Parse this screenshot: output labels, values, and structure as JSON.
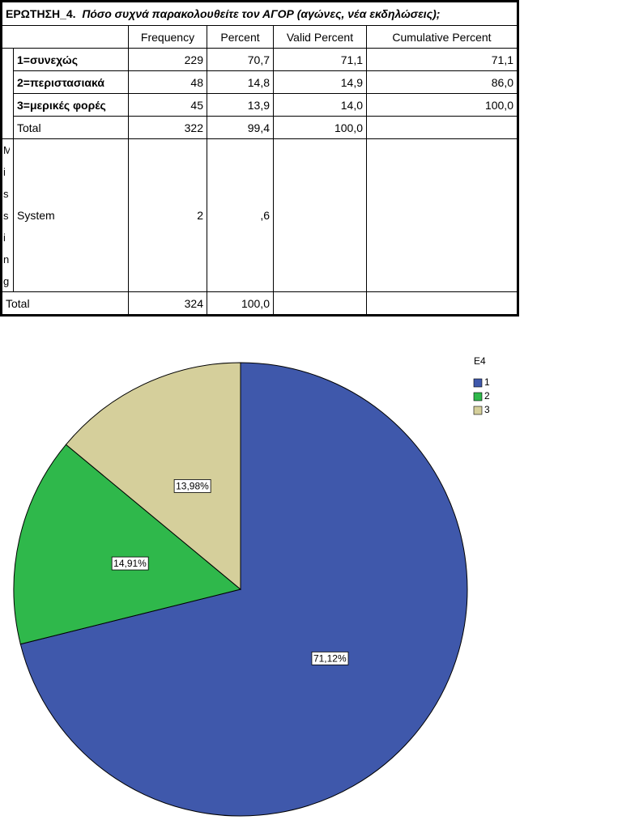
{
  "table": {
    "title_code": "ΕΡΩΤΗΣΗ_4.",
    "title_question": "Πόσο συχνά παρακολουθείτε τον ΑΓΟΡ (αγώνες, νέα εκδηλώσεις);",
    "columns": [
      "Frequency",
      "Percent",
      "Valid Percent",
      "Cumulative Percent"
    ],
    "valid_rows": [
      [
        "1=συνεχώς",
        "229",
        "70,7",
        "71,1",
        "71,1"
      ],
      [
        "2=περιστασιακά",
        "48",
        "14,8",
        "14,9",
        "86,0"
      ],
      [
        "3=μερικές φορές",
        "45",
        "13,9",
        "14,0",
        "100,0"
      ],
      [
        "Total",
        "322",
        "99,4",
        "100,0"
      ]
    ],
    "missing_label": "Missing",
    "missing_row": [
      "System",
      "2",
      ",6"
    ],
    "total_row": [
      "Total",
      "324",
      "100,0"
    ]
  },
  "chart_data": {
    "type": "pie",
    "legend_title": "E4",
    "categories": [
      "1",
      "2",
      "3"
    ],
    "values": [
      71.12,
      14.91,
      13.98
    ],
    "value_labels": [
      "71,12%",
      "14,91%",
      "13,98%"
    ],
    "colors": [
      "#3f58ab",
      "#2fb84b",
      "#d5cf9b"
    ],
    "legend": "top-right"
  }
}
